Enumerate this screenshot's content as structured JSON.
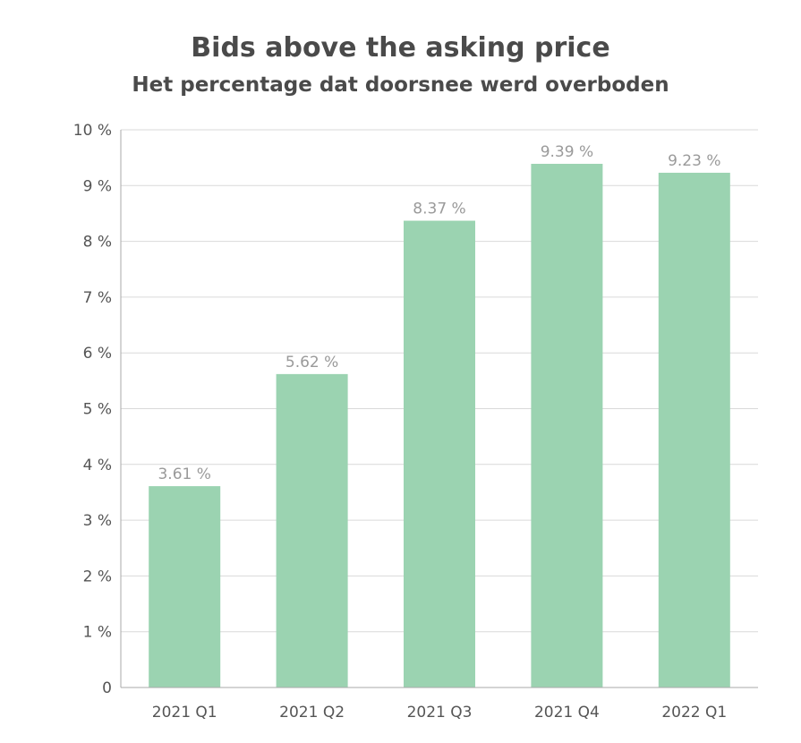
{
  "chart_data": {
    "type": "bar",
    "title": "Bids above the asking price",
    "subtitle": "Het percentage dat doorsnee werd overboden",
    "categories": [
      "2021 Q1",
      "2021 Q2",
      "2021 Q3",
      "2021 Q4",
      "2022 Q1"
    ],
    "values": [
      3.61,
      5.62,
      8.37,
      9.39,
      9.23
    ],
    "data_labels": [
      "3.61 %",
      "5.62 %",
      "8.37 %",
      "9.39 %",
      "9.23 %"
    ],
    "y_ticks": [
      {
        "value": 0,
        "label": "0"
      },
      {
        "value": 1,
        "label": "1 %"
      },
      {
        "value": 2,
        "label": "2 %"
      },
      {
        "value": 3,
        "label": "3 %"
      },
      {
        "value": 4,
        "label": "4 %"
      },
      {
        "value": 5,
        "label": "5 %"
      },
      {
        "value": 6,
        "label": "6 %"
      },
      {
        "value": 7,
        "label": "7 %"
      },
      {
        "value": 8,
        "label": "8 %"
      },
      {
        "value": 9,
        "label": "9 %"
      },
      {
        "value": 10,
        "label": "10 %"
      }
    ],
    "ylim": [
      0,
      10
    ],
    "grid": true,
    "legend": "none",
    "bar_color": "#9bd3b1",
    "grid_color": "#d9d9d9",
    "axis_color": "#aaaaaa"
  }
}
